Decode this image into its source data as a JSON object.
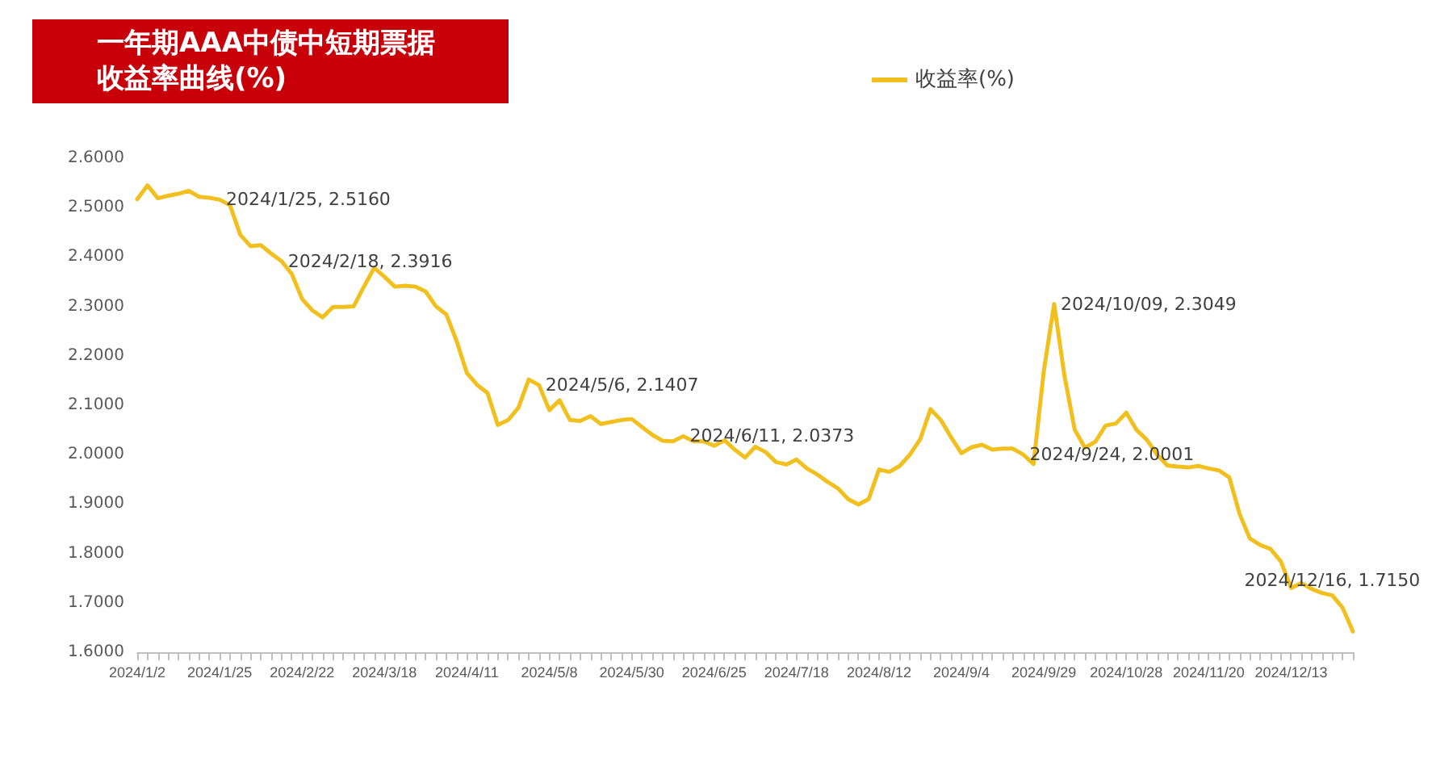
{
  "chart_data": {
    "type": "line",
    "title": "一年期AAA中债中短期票据收益率曲线(%)",
    "categories": [
      "2024/1/2",
      null,
      null,
      null,
      null,
      null,
      null,
      null,
      "2024/1/25",
      null,
      null,
      null,
      null,
      null,
      null,
      null,
      "2024/2/22",
      null,
      null,
      null,
      null,
      null,
      null,
      null,
      "2024/3/18",
      null,
      null,
      null,
      null,
      null,
      null,
      null,
      "2024/4/11",
      null,
      null,
      null,
      null,
      null,
      null,
      null,
      "2024/5/8",
      null,
      null,
      null,
      null,
      null,
      null,
      null,
      "2024/5/30",
      null,
      null,
      null,
      null,
      null,
      null,
      null,
      "2024/6/25",
      null,
      null,
      null,
      null,
      null,
      null,
      null,
      "2024/7/18",
      null,
      null,
      null,
      null,
      null,
      null,
      null,
      "2024/8/12",
      null,
      null,
      null,
      null,
      null,
      null,
      null,
      "2024/9/4",
      null,
      null,
      null,
      null,
      null,
      null,
      null,
      "2024/9/29",
      null,
      null,
      null,
      null,
      null,
      null,
      null,
      "2024/10/28",
      null,
      null,
      null,
      null,
      null,
      null,
      null,
      "2024/11/20",
      null,
      null,
      null,
      null,
      null,
      null,
      null,
      "2024/12/13",
      null,
      null,
      null,
      null,
      null,
      null
    ],
    "series": [
      {
        "name": "收益率(%)",
        "color": "#f2c01e",
        "values": [
          2.517,
          2.545,
          2.519,
          2.524,
          2.528,
          2.534,
          2.522,
          2.52,
          2.516,
          2.505,
          2.445,
          2.422,
          2.424,
          2.407,
          2.3916,
          2.366,
          2.315,
          2.292,
          2.278,
          2.299,
          2.299,
          2.3,
          2.34,
          2.378,
          2.36,
          2.34,
          2.342,
          2.34,
          2.33,
          2.3,
          2.284,
          2.23,
          2.165,
          2.141,
          2.125,
          2.06,
          2.07,
          2.095,
          2.152,
          2.1407,
          2.09,
          2.11,
          2.07,
          2.068,
          2.078,
          2.062,
          2.066,
          2.07,
          2.072,
          2.056,
          2.04,
          2.028,
          2.027,
          2.0373,
          2.027,
          2.027,
          2.018,
          2.029,
          2.01,
          1.994,
          2.016,
          2.005,
          1.985,
          1.98,
          1.99,
          1.972,
          1.96,
          1.945,
          1.932,
          1.91,
          1.899,
          1.91,
          1.97,
          1.965,
          1.977,
          2.0,
          2.031,
          2.092,
          2.07,
          2.035,
          2.003,
          2.015,
          2.02,
          2.01,
          2.012,
          2.012,
          2.0001,
          1.981,
          2.17,
          2.3049,
          2.16,
          2.05,
          2.014,
          2.026,
          2.059,
          2.063,
          2.085,
          2.05,
          2.03,
          2.0,
          1.978,
          1.976,
          1.974,
          1.977,
          1.972,
          1.968,
          1.954,
          1.88,
          1.83,
          1.817,
          1.809,
          1.784,
          1.73,
          1.74,
          1.728,
          1.72,
          1.715,
          1.69,
          1.642
        ],
        "value_labels": [
          null,
          null,
          null,
          null,
          null,
          null,
          null,
          null,
          "2024/1/25, 2.5160",
          null,
          null,
          null,
          null,
          null,
          "2024/2/18, 2.3916",
          null,
          null,
          null,
          null,
          null,
          null,
          null,
          null,
          null,
          null,
          null,
          null,
          null,
          null,
          null,
          null,
          null,
          null,
          null,
          null,
          null,
          null,
          null,
          null,
          "2024/5/6, 2.1407",
          null,
          null,
          null,
          null,
          null,
          null,
          null,
          null,
          null,
          null,
          null,
          null,
          null,
          "2024/6/11, 2.0373",
          null,
          null,
          null,
          null,
          null,
          null,
          null,
          null,
          null,
          null,
          null,
          null,
          null,
          null,
          null,
          null,
          null,
          null,
          null,
          null,
          null,
          null,
          null,
          null,
          null,
          null,
          null,
          null,
          null,
          null,
          null,
          null,
          "2024/9/24, 2.0001",
          null,
          null,
          "2024/10/09, 2.3049",
          null,
          null,
          null,
          null,
          null,
          null,
          null,
          null,
          null,
          null,
          null,
          null,
          null,
          null,
          null,
          null,
          null,
          null,
          null,
          null,
          null,
          null,
          null,
          null,
          null,
          null,
          "2024/12/16, 1.7150",
          null,
          null
        ]
      }
    ],
    "ylim": [
      1.6,
      2.6
    ],
    "yticks": [
      {
        "value": 1.6,
        "label": "1.6000"
      },
      {
        "value": 1.7,
        "label": "1.7000"
      },
      {
        "value": 1.8,
        "label": "1.8000"
      },
      {
        "value": 1.9,
        "label": "1.9000"
      },
      {
        "value": 2.0,
        "label": "2.0000"
      },
      {
        "value": 2.1,
        "label": "2.1000"
      },
      {
        "value": 2.2,
        "label": "2.2000"
      },
      {
        "value": 2.3,
        "label": "2.3000"
      },
      {
        "value": 2.4,
        "label": "2.4000"
      },
      {
        "value": 2.5,
        "label": "2.5000"
      },
      {
        "value": 2.6,
        "label": "2.6000"
      }
    ],
    "grid": false,
    "legend": "top right",
    "marker": "none",
    "line_style": "solid"
  }
}
